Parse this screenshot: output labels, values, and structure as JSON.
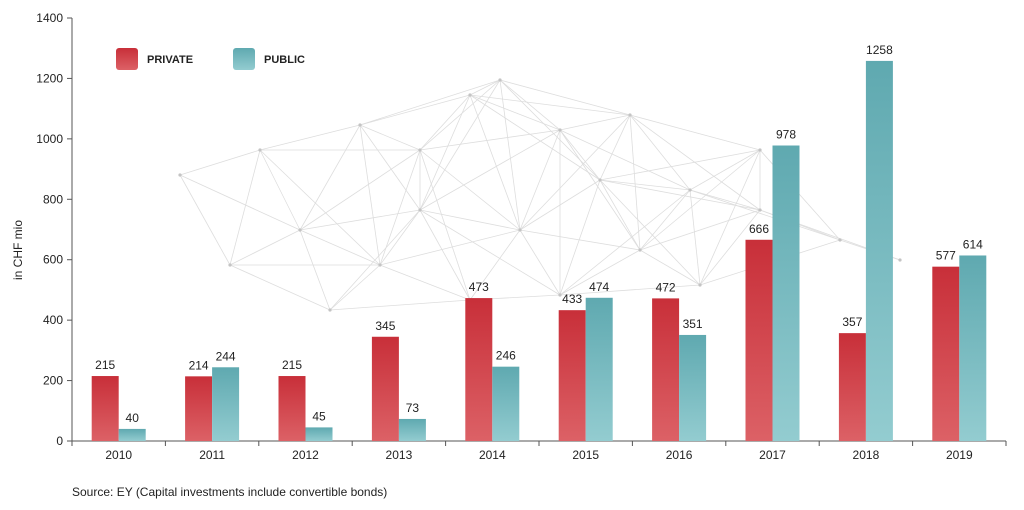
{
  "chart_data": {
    "type": "bar",
    "title": "",
    "xlabel": "",
    "ylabel": "in CHF mio",
    "ylim": [
      0,
      1400
    ],
    "yticks": [
      0,
      200,
      400,
      600,
      800,
      1000,
      1200,
      1400
    ],
    "grid": false,
    "legend_position": "top-left",
    "categories": [
      "2010",
      "2011",
      "2012",
      "2013",
      "2014",
      "2015",
      "2016",
      "2017",
      "2018",
      "2019"
    ],
    "series": [
      {
        "name": "PRIVATE",
        "color": "#c8343c",
        "values": [
          215,
          214,
          215,
          345,
          473,
          433,
          472,
          666,
          357,
          577
        ]
      },
      {
        "name": "PUBLIC",
        "color": "#6db2b8",
        "values": [
          40,
          244,
          45,
          73,
          246,
          474,
          351,
          978,
          1258,
          614
        ]
      }
    ]
  },
  "source_text": "Source: EY (Capital investments include convertible bonds)"
}
